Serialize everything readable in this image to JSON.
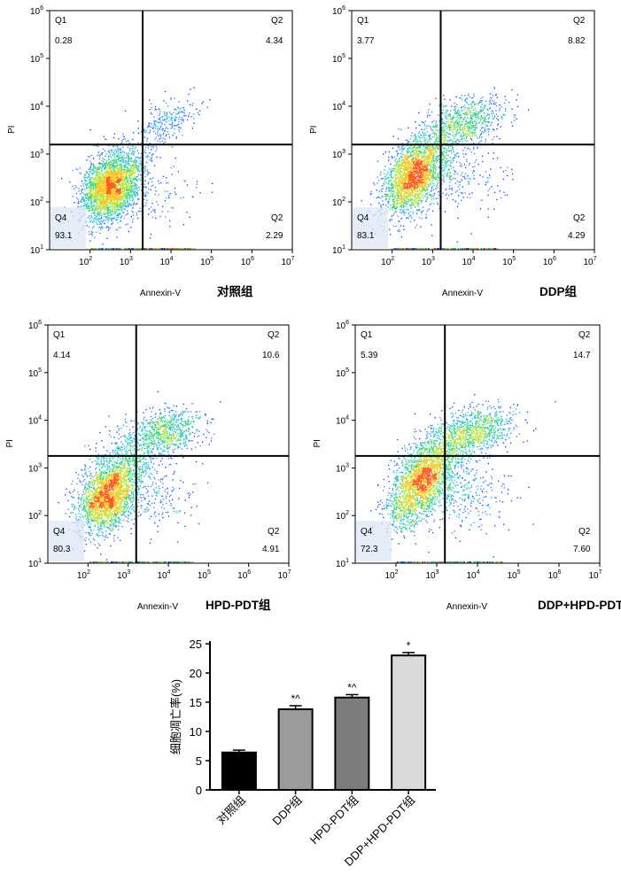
{
  "colors": {
    "density": [
      "#1b2cff",
      "#2f7bff",
      "#19c0d8",
      "#36d67a",
      "#b7e43a",
      "#f7c51c",
      "#ff5a1a"
    ],
    "axis": "#000000",
    "gate": "#000000"
  },
  "chart_data": [
    {
      "type": "scatter",
      "plot_kind": "flow cytometry density dot plot",
      "group_label": "对照组",
      "xlabel": "Annexin-V",
      "ylabel": "PI",
      "x_scale": "log",
      "y_scale": "log",
      "xlim": [
        10,
        10000000
      ],
      "ylim": [
        10,
        1000000
      ],
      "x_ticks": [
        {
          "base": "10",
          "exp": "2"
        },
        {
          "base": "10",
          "exp": "3"
        },
        {
          "base": "10",
          "exp": "4"
        },
        {
          "base": "10",
          "exp": "5"
        },
        {
          "base": "10",
          "exp": "6"
        },
        {
          "base": "10",
          "exp": "7"
        }
      ],
      "y_ticks": [
        {
          "base": "10",
          "exp": "1"
        },
        {
          "base": "10",
          "exp": "2"
        },
        {
          "base": "10",
          "exp": "3"
        },
        {
          "base": "10",
          "exp": "4"
        },
        {
          "base": "10",
          "exp": "5"
        },
        {
          "base": "10",
          "exp": "6"
        }
      ],
      "gate_x": 1995,
      "gate_y": 1585,
      "quadrants": {
        "ul": {
          "name": "Q1",
          "value": "0.28"
        },
        "ur": {
          "name": "Q2",
          "value": "4.34"
        },
        "ll": {
          "name": "Q4",
          "value": "93.1"
        },
        "lr": {
          "name": "Q2",
          "value": "2.29"
        }
      },
      "populations": [
        {
          "x": 300,
          "y": 200,
          "n": 2600,
          "sx": 0.34,
          "sy": 0.36,
          "rho": 0.25
        },
        {
          "x": 1200,
          "y": 400,
          "n": 300,
          "sx": 0.35,
          "sy": 0.35,
          "rho": 0.2
        },
        {
          "x": 8000,
          "y": 4500,
          "n": 260,
          "sx": 0.35,
          "sy": 0.22,
          "rho": 0.4
        },
        {
          "x": 6000,
          "y": 150,
          "n": 90,
          "sx": 0.5,
          "sy": 0.4,
          "rho": 0
        }
      ]
    },
    {
      "type": "scatter",
      "plot_kind": "flow cytometry density dot plot",
      "group_label": "DDP组",
      "xlabel": "Annexin-V",
      "ylabel": "PI",
      "x_scale": "log",
      "y_scale": "log",
      "xlim": [
        10,
        10000000
      ],
      "ylim": [
        10,
        1000000
      ],
      "x_ticks": [
        {
          "base": "10",
          "exp": "2"
        },
        {
          "base": "10",
          "exp": "3"
        },
        {
          "base": "10",
          "exp": "4"
        },
        {
          "base": "10",
          "exp": "5"
        },
        {
          "base": "10",
          "exp": "6"
        },
        {
          "base": "10",
          "exp": "7"
        }
      ],
      "y_ticks": [
        {
          "base": "10",
          "exp": "1"
        },
        {
          "base": "10",
          "exp": "2"
        },
        {
          "base": "10",
          "exp": "3"
        },
        {
          "base": "10",
          "exp": "4"
        },
        {
          "base": "10",
          "exp": "5"
        },
        {
          "base": "10",
          "exp": "6"
        }
      ],
      "gate_x": 1585,
      "gate_y": 1585,
      "quadrants": {
        "ul": {
          "name": "Q1",
          "value": "3.77"
        },
        "ur": {
          "name": "Q2",
          "value": "8.82"
        },
        "ll": {
          "name": "Q4",
          "value": "83.1"
        },
        "lr": {
          "name": "Q2",
          "value": "4.29"
        }
      },
      "populations": [
        {
          "x": 300,
          "y": 300,
          "n": 2000,
          "sx": 0.35,
          "sy": 0.38,
          "rho": 0.35
        },
        {
          "x": 1000,
          "y": 1200,
          "n": 500,
          "sx": 0.4,
          "sy": 0.35,
          "rho": 0.3
        },
        {
          "x": 8000,
          "y": 5000,
          "n": 650,
          "sx": 0.45,
          "sy": 0.25,
          "rho": 0.3
        },
        {
          "x": 5000,
          "y": 300,
          "n": 200,
          "sx": 0.5,
          "sy": 0.4,
          "rho": 0
        }
      ]
    },
    {
      "type": "scatter",
      "plot_kind": "flow cytometry density dot plot",
      "group_label": "HPD-PDT组",
      "xlabel": "Annexin-V",
      "ylabel": "PI",
      "x_scale": "log",
      "y_scale": "log",
      "xlim": [
        10,
        10000000
      ],
      "ylim": [
        10,
        1000000
      ],
      "x_ticks": [
        {
          "base": "10",
          "exp": "2"
        },
        {
          "base": "10",
          "exp": "3"
        },
        {
          "base": "10",
          "exp": "4"
        },
        {
          "base": "10",
          "exp": "5"
        },
        {
          "base": "10",
          "exp": "6"
        },
        {
          "base": "10",
          "exp": "7"
        }
      ],
      "y_ticks": [
        {
          "base": "10",
          "exp": "1"
        },
        {
          "base": "10",
          "exp": "2"
        },
        {
          "base": "10",
          "exp": "3"
        },
        {
          "base": "10",
          "exp": "4"
        },
        {
          "base": "10",
          "exp": "5"
        },
        {
          "base": "10",
          "exp": "6"
        }
      ],
      "gate_x": 1585,
      "gate_y": 1780,
      "quadrants": {
        "ul": {
          "name": "Q1",
          "value": "4.14"
        },
        "ur": {
          "name": "Q2",
          "value": "10.6"
        },
        "ll": {
          "name": "Q4",
          "value": "80.3"
        },
        "lr": {
          "name": "Q2",
          "value": "4.91"
        }
      },
      "populations": [
        {
          "x": 300,
          "y": 250,
          "n": 2200,
          "sx": 0.36,
          "sy": 0.38,
          "rho": 0.3
        },
        {
          "x": 1100,
          "y": 1500,
          "n": 500,
          "sx": 0.4,
          "sy": 0.35,
          "rho": 0.3
        },
        {
          "x": 9000,
          "y": 5500,
          "n": 700,
          "sx": 0.45,
          "sy": 0.25,
          "rho": 0.3
        },
        {
          "x": 5000,
          "y": 250,
          "n": 200,
          "sx": 0.5,
          "sy": 0.4,
          "rho": 0
        }
      ]
    },
    {
      "type": "scatter",
      "plot_kind": "flow cytometry density dot plot",
      "group_label": "DDP+HPD-PDT组",
      "xlabel": "Annexin-V",
      "ylabel": "PI",
      "x_scale": "log",
      "y_scale": "log",
      "xlim": [
        10,
        10000000
      ],
      "ylim": [
        10,
        1000000
      ],
      "x_ticks": [
        {
          "base": "10",
          "exp": "2"
        },
        {
          "base": "10",
          "exp": "3"
        },
        {
          "base": "10",
          "exp": "4"
        },
        {
          "base": "10",
          "exp": "5"
        },
        {
          "base": "10",
          "exp": "6"
        },
        {
          "base": "10",
          "exp": "7"
        }
      ],
      "y_ticks": [
        {
          "base": "10",
          "exp": "1"
        },
        {
          "base": "10",
          "exp": "2"
        },
        {
          "base": "10",
          "exp": "3"
        },
        {
          "base": "10",
          "exp": "4"
        },
        {
          "base": "10",
          "exp": "5"
        },
        {
          "base": "10",
          "exp": "6"
        }
      ],
      "gate_x": 1585,
      "gate_y": 1780,
      "quadrants": {
        "ul": {
          "name": "Q1",
          "value": "5.39"
        },
        "ur": {
          "name": "Q2",
          "value": "14.7"
        },
        "ll": {
          "name": "Q4",
          "value": "72.3"
        },
        "lr": {
          "name": "Q2",
          "value": "7.60"
        }
      },
      "populations": [
        {
          "x": 350,
          "y": 400,
          "n": 1900,
          "sx": 0.38,
          "sy": 0.42,
          "rho": 0.45
        },
        {
          "x": 1200,
          "y": 1800,
          "n": 600,
          "sx": 0.42,
          "sy": 0.38,
          "rho": 0.35
        },
        {
          "x": 9000,
          "y": 6000,
          "n": 800,
          "sx": 0.45,
          "sy": 0.25,
          "rho": 0.3
        },
        {
          "x": 5000,
          "y": 300,
          "n": 300,
          "sx": 0.55,
          "sy": 0.45,
          "rho": 0
        }
      ]
    },
    {
      "type": "bar",
      "categories": [
        "对照组",
        "DDP组",
        "HPD-PDT组",
        "DDP+HPD-PDT组"
      ],
      "values": [
        6.4,
        13.8,
        15.8,
        23.0
      ],
      "errors": [
        0.4,
        0.6,
        0.5,
        0.5
      ],
      "annotations": [
        "",
        "*^",
        "*^",
        "*"
      ],
      "bar_colors": [
        "#000000",
        "#9b9b9b",
        "#7d7d7d",
        "#d9d9d9"
      ],
      "ylabel": "细胞凋亡率(%)",
      "ylim": [
        0,
        25
      ],
      "yticks": [
        0,
        5,
        10,
        15,
        20,
        25
      ]
    }
  ]
}
